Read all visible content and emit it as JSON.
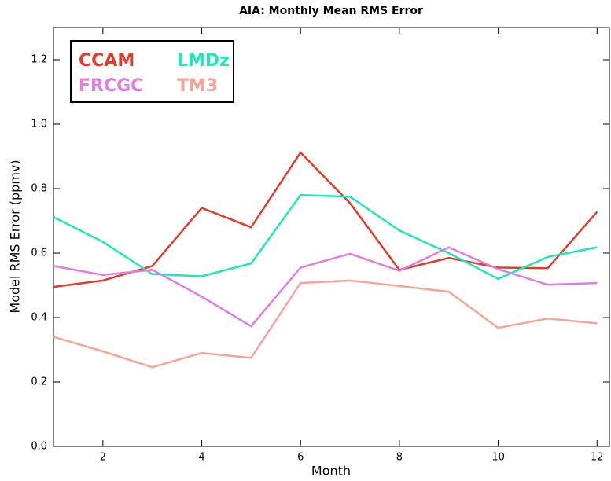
{
  "chart_data": {
    "type": "line",
    "title": "AIA: Monthly Mean RMS Error",
    "x_label": "Month",
    "y_label": "Model RMS Error (ppmv)",
    "x": [
      1,
      2,
      3,
      4,
      5,
      6,
      7,
      8,
      9,
      10,
      11,
      12
    ],
    "series": [
      {
        "name": "CCAM",
        "color": "#e23b2b",
        "values": [
          0.495,
          0.515,
          0.56,
          0.74,
          0.68,
          0.912,
          0.755,
          0.548,
          0.585,
          0.555,
          0.553,
          0.728
        ]
      },
      {
        "name": "LMDz",
        "color": "#1ee8b8",
        "values": [
          0.712,
          0.635,
          0.535,
          0.528,
          0.568,
          0.78,
          0.775,
          0.67,
          0.6,
          0.52,
          0.588,
          0.618
        ]
      },
      {
        "name": "FRCGC",
        "color": "#e07ee0",
        "values": [
          0.56,
          0.532,
          0.548,
          0.465,
          0.373,
          0.555,
          0.598,
          0.545,
          0.618,
          0.55,
          0.502,
          0.507
        ]
      },
      {
        "name": "TM3",
        "color": "#f4a597",
        "values": [
          0.34,
          0.295,
          0.246,
          0.29,
          0.275,
          0.507,
          0.515,
          0.498,
          0.48,
          0.368,
          0.397,
          0.382
        ]
      }
    ],
    "xlim": [
      1,
      12.25
    ],
    "xticks": [
      2,
      4,
      6,
      8,
      10,
      12
    ],
    "ylim": [
      0,
      1.3
    ],
    "yticks": [
      {
        "value": 0,
        "label": "0.0"
      },
      0.2,
      0.4,
      0.6,
      0.8,
      {
        "value": 1,
        "label": "1.0"
      },
      1.2
    ],
    "legend": "upper left",
    "grid": false
  }
}
